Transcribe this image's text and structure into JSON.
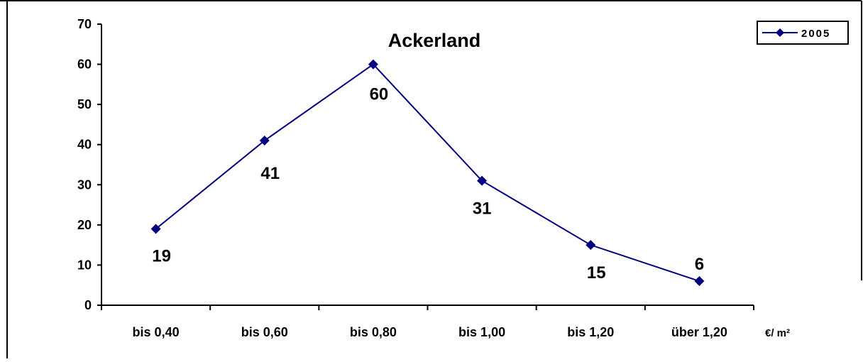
{
  "chart_data": {
    "type": "line",
    "title": "Ackerland",
    "categories": [
      "bis 0,40",
      "bis 0,60",
      "bis 0,80",
      "bis 1,00",
      "bis 1,20",
      "über 1,20"
    ],
    "series": [
      {
        "name": "2005",
        "values": [
          19,
          41,
          60,
          31,
          15,
          6
        ]
      }
    ],
    "data_labels": [
      "19",
      "41",
      "60",
      "31",
      "15",
      "6"
    ],
    "y_ticks": [
      "0",
      "10",
      "20",
      "30",
      "40",
      "50",
      "60",
      "70"
    ],
    "ylim": [
      0,
      70
    ],
    "x_unit_label": "€/ m²",
    "grid": false,
    "legend_position": "top-right",
    "series_color": "#000080"
  }
}
